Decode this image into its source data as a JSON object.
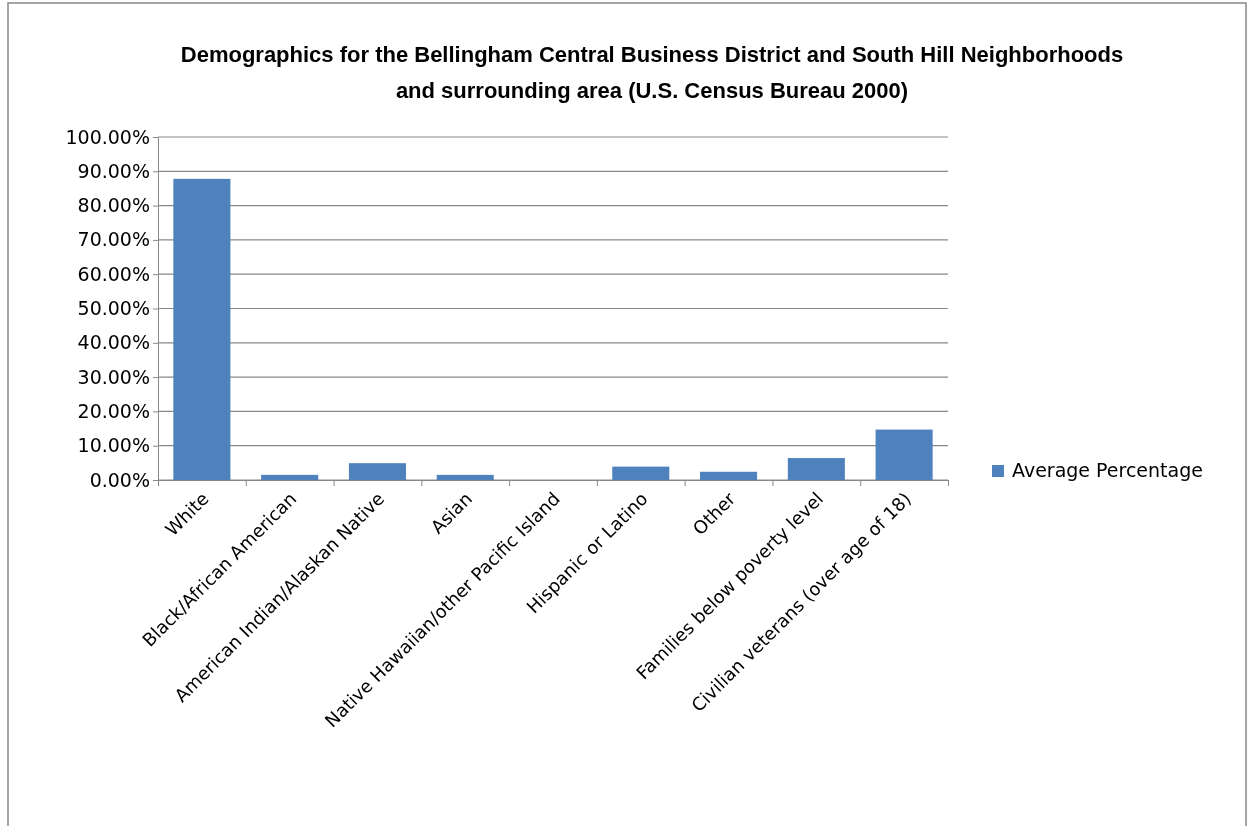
{
  "chart_data": {
    "type": "bar",
    "title": "Demographics for the Bellingham Central Business District and South Hill Neighborhoods and surrounding area (U.S. Census Bureau 2000)",
    "categories": [
      "White",
      "Black/African American",
      "American Indian/Alaskan Native",
      "Asian",
      "Native Hawaiian/other Pacific Island",
      "Hispanic or Latino",
      "Other",
      "Families below poverty level",
      "Civilian veterans (over age of 18)"
    ],
    "series": [
      {
        "name": "Average Percentage",
        "color": "#4f81bd",
        "values": [
          87.8,
          1.5,
          4.9,
          1.5,
          0,
          3.9,
          2.4,
          6.4,
          14.7
        ]
      }
    ],
    "ylim": [
      0,
      100
    ],
    "yticks": [
      {
        "value": 0,
        "label": "0.00%"
      },
      {
        "value": 10,
        "label": "10.00%"
      },
      {
        "value": 20,
        "label": "20.00%"
      },
      {
        "value": 30,
        "label": "30.00%"
      },
      {
        "value": 40,
        "label": "40.00%"
      },
      {
        "value": 50,
        "label": "50.00%"
      },
      {
        "value": 60,
        "label": "60.00%"
      },
      {
        "value": 70,
        "label": "70.00%"
      },
      {
        "value": 80,
        "label": "80.00%"
      },
      {
        "value": 90,
        "label": "90.00%"
      },
      {
        "value": 100,
        "label": "100.00%"
      }
    ],
    "grid": "y",
    "legend": "right"
  }
}
